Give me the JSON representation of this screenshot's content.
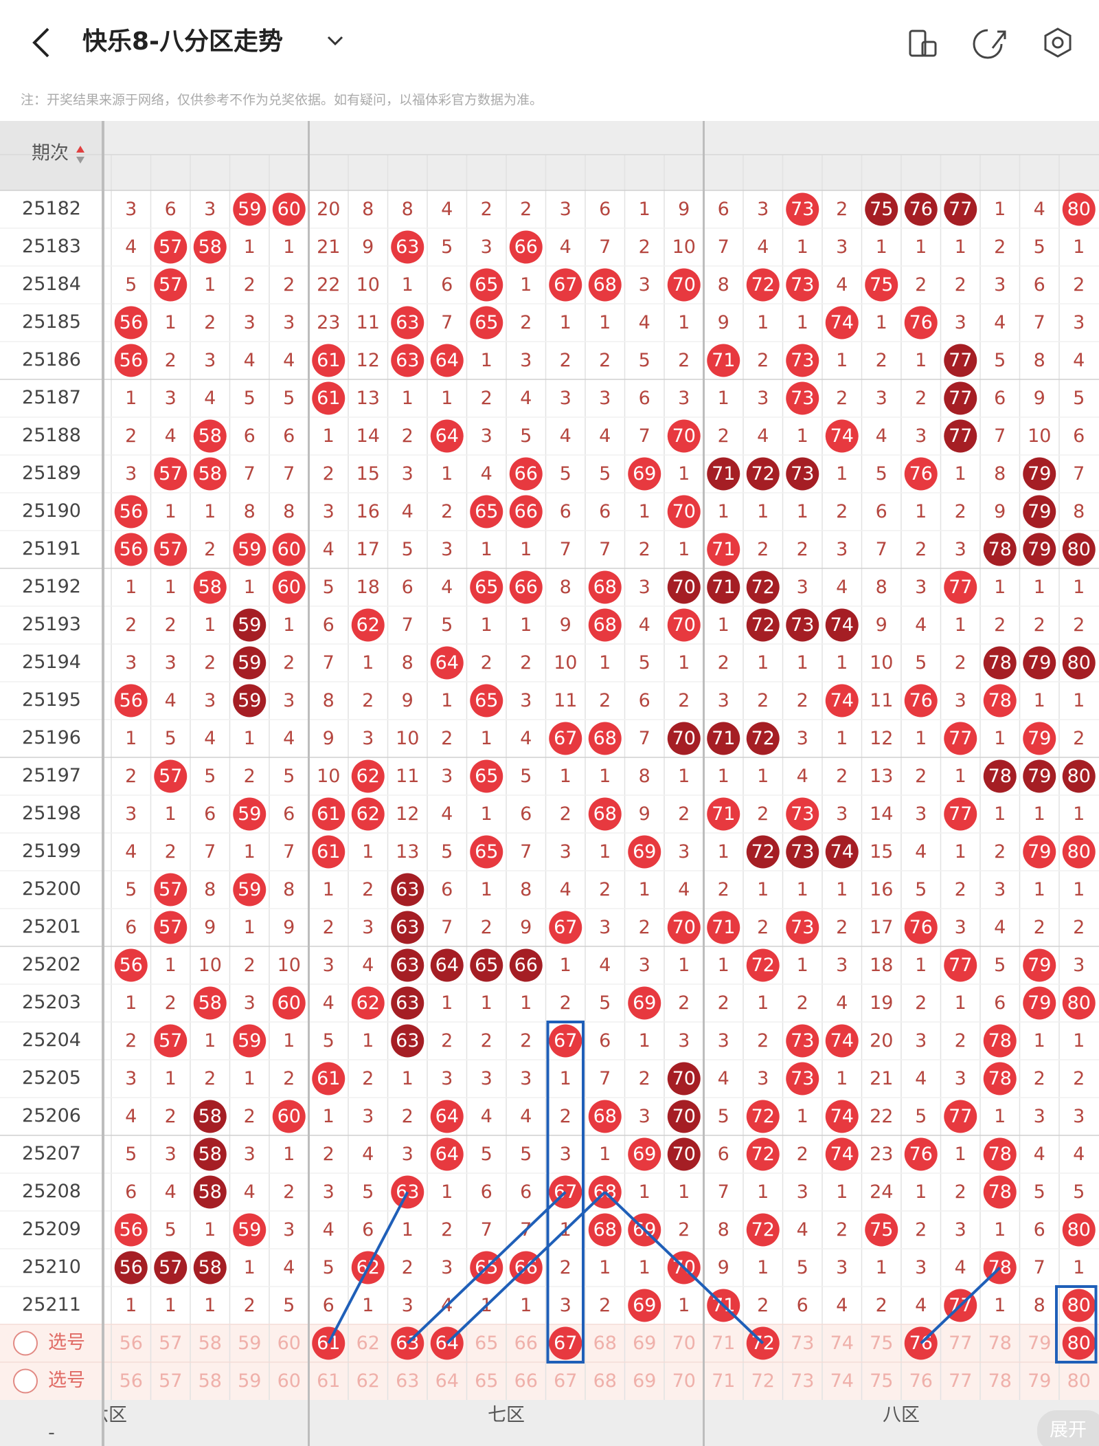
{
  "header": {
    "title": "快乐8-八分区走势",
    "note": "注：开奖结果来源于网络，仅供参考不作为兑奖依据。如有疑问，以福体彩官方数据为准。"
  },
  "table": {
    "period_header": "期次",
    "zones": [
      {
        "label": "六区"
      },
      {
        "label": "七区"
      },
      {
        "label": "八区"
      }
    ],
    "columns": [
      56,
      57,
      58,
      59,
      60,
      61,
      62,
      63,
      64,
      65,
      66,
      67,
      68,
      69,
      70,
      71,
      72,
      73,
      74,
      75,
      76,
      77,
      78,
      79,
      80
    ],
    "rows": [
      {
        "period": "25182",
        "cells": [
          3,
          6,
          3,
          59,
          60,
          20,
          8,
          8,
          4,
          2,
          2,
          3,
          6,
          1,
          9,
          6,
          3,
          73,
          2,
          75,
          76,
          77,
          1,
          4,
          80
        ],
        "dark": [
          75,
          76,
          77
        ]
      },
      {
        "period": "25183",
        "cells": [
          4,
          57,
          58,
          1,
          1,
          21,
          9,
          63,
          5,
          3,
          66,
          4,
          7,
          2,
          10,
          7,
          4,
          1,
          3,
          1,
          1,
          1,
          2,
          5,
          1
        ]
      },
      {
        "period": "25184",
        "cells": [
          5,
          57,
          1,
          2,
          2,
          22,
          10,
          1,
          6,
          65,
          1,
          67,
          68,
          3,
          70,
          8,
          72,
          73,
          4,
          75,
          2,
          2,
          3,
          6,
          2
        ]
      },
      {
        "period": "25185",
        "cells": [
          56,
          1,
          2,
          3,
          3,
          23,
          11,
          63,
          7,
          65,
          2,
          1,
          1,
          4,
          1,
          9,
          1,
          1,
          74,
          1,
          76,
          3,
          4,
          7,
          3
        ]
      },
      {
        "period": "25186",
        "cells": [
          56,
          2,
          3,
          4,
          4,
          61,
          12,
          63,
          64,
          1,
          3,
          2,
          2,
          5,
          2,
          71,
          2,
          73,
          1,
          2,
          1,
          77,
          5,
          8,
          4
        ],
        "dark": [
          77
        ]
      },
      {
        "period": "25187",
        "cells": [
          1,
          3,
          4,
          5,
          5,
          61,
          13,
          1,
          1,
          2,
          4,
          3,
          3,
          6,
          3,
          1,
          3,
          73,
          2,
          3,
          2,
          77,
          6,
          9,
          5
        ],
        "dark": [
          77
        ]
      },
      {
        "period": "25188",
        "cells": [
          2,
          4,
          58,
          6,
          6,
          1,
          14,
          2,
          64,
          3,
          5,
          4,
          4,
          7,
          70,
          2,
          4,
          1,
          74,
          4,
          3,
          77,
          7,
          10,
          6
        ],
        "dark": [
          77
        ]
      },
      {
        "period": "25189",
        "cells": [
          3,
          57,
          58,
          7,
          7,
          2,
          15,
          3,
          1,
          4,
          66,
          5,
          5,
          69,
          1,
          71,
          72,
          73,
          1,
          5,
          76,
          1,
          8,
          79,
          7
        ],
        "dark": [
          71,
          72,
          73,
          79
        ]
      },
      {
        "period": "25190",
        "cells": [
          56,
          1,
          1,
          8,
          8,
          3,
          16,
          4,
          2,
          65,
          66,
          6,
          6,
          1,
          70,
          1,
          1,
          1,
          2,
          6,
          1,
          2,
          9,
          79,
          8
        ],
        "dark": [
          79
        ]
      },
      {
        "period": "25191",
        "cells": [
          56,
          57,
          2,
          59,
          60,
          4,
          17,
          5,
          3,
          1,
          1,
          7,
          7,
          2,
          1,
          71,
          2,
          2,
          3,
          7,
          2,
          3,
          78,
          79,
          80
        ],
        "dark": [
          78,
          79,
          80
        ]
      },
      {
        "period": "25192",
        "cells": [
          1,
          1,
          58,
          1,
          60,
          5,
          18,
          6,
          4,
          65,
          66,
          8,
          68,
          3,
          70,
          71,
          72,
          3,
          4,
          8,
          3,
          77,
          1,
          1,
          1
        ],
        "dark": [
          70,
          71,
          72
        ]
      },
      {
        "period": "25193",
        "cells": [
          2,
          2,
          1,
          59,
          1,
          6,
          62,
          7,
          5,
          1,
          1,
          9,
          68,
          4,
          70,
          1,
          72,
          73,
          74,
          9,
          4,
          1,
          2,
          2,
          2
        ],
        "dark": [
          59,
          72,
          73,
          74
        ]
      },
      {
        "period": "25194",
        "cells": [
          3,
          3,
          2,
          59,
          2,
          7,
          1,
          8,
          64,
          2,
          2,
          10,
          1,
          5,
          1,
          2,
          1,
          1,
          1,
          10,
          5,
          2,
          78,
          79,
          80
        ],
        "dark": [
          59,
          78,
          79,
          80
        ]
      },
      {
        "period": "25195",
        "cells": [
          56,
          4,
          3,
          59,
          3,
          8,
          2,
          9,
          1,
          65,
          3,
          11,
          2,
          6,
          2,
          3,
          2,
          2,
          74,
          11,
          76,
          3,
          78,
          1,
          1
        ],
        "dark": [
          59
        ]
      },
      {
        "period": "25196",
        "cells": [
          1,
          5,
          4,
          1,
          4,
          9,
          3,
          10,
          2,
          1,
          4,
          67,
          68,
          7,
          70,
          71,
          72,
          3,
          1,
          12,
          1,
          77,
          1,
          79,
          2
        ],
        "dark": [
          70,
          71,
          72
        ]
      },
      {
        "period": "25197",
        "cells": [
          2,
          57,
          5,
          2,
          5,
          10,
          62,
          11,
          3,
          65,
          5,
          1,
          1,
          8,
          1,
          1,
          1,
          4,
          2,
          13,
          2,
          1,
          78,
          79,
          80
        ],
        "dark": [
          78,
          79,
          80
        ]
      },
      {
        "period": "25198",
        "cells": [
          3,
          1,
          6,
          59,
          6,
          61,
          62,
          12,
          4,
          1,
          6,
          2,
          68,
          9,
          2,
          71,
          2,
          73,
          3,
          14,
          3,
          77,
          1,
          1,
          1
        ]
      },
      {
        "period": "25199",
        "cells": [
          4,
          2,
          7,
          1,
          7,
          61,
          1,
          13,
          5,
          65,
          7,
          3,
          1,
          69,
          3,
          1,
          72,
          73,
          74,
          15,
          4,
          1,
          2,
          79,
          80
        ],
        "dark": [
          72,
          73,
          74
        ]
      },
      {
        "period": "25200",
        "cells": [
          5,
          57,
          8,
          59,
          8,
          1,
          2,
          63,
          6,
          1,
          8,
          4,
          2,
          1,
          4,
          2,
          1,
          1,
          1,
          16,
          5,
          2,
          3,
          1,
          1
        ],
        "dark": [
          63
        ]
      },
      {
        "period": "25201",
        "cells": [
          6,
          57,
          9,
          1,
          9,
          2,
          3,
          63,
          7,
          2,
          9,
          67,
          3,
          2,
          70,
          71,
          2,
          73,
          2,
          17,
          76,
          3,
          4,
          2,
          2
        ],
        "dark": [
          63
        ]
      },
      {
        "period": "25202",
        "cells": [
          56,
          1,
          10,
          2,
          10,
          3,
          4,
          63,
          64,
          65,
          66,
          1,
          4,
          3,
          1,
          1,
          72,
          1,
          3,
          18,
          1,
          77,
          5,
          79,
          3
        ],
        "dark": [
          63,
          64,
          65,
          66
        ]
      },
      {
        "period": "25203",
        "cells": [
          1,
          2,
          58,
          3,
          60,
          4,
          62,
          63,
          1,
          1,
          1,
          2,
          5,
          69,
          2,
          2,
          1,
          2,
          4,
          19,
          2,
          1,
          6,
          79,
          80
        ],
        "dark": [
          63
        ]
      },
      {
        "period": "25204",
        "cells": [
          2,
          57,
          1,
          59,
          1,
          5,
          1,
          63,
          2,
          2,
          2,
          67,
          6,
          1,
          3,
          3,
          2,
          73,
          74,
          20,
          3,
          2,
          78,
          1,
          1
        ],
        "dark": [
          63
        ]
      },
      {
        "period": "25205",
        "cells": [
          3,
          1,
          2,
          1,
          2,
          61,
          2,
          1,
          3,
          3,
          3,
          1,
          7,
          2,
          70,
          4,
          3,
          73,
          1,
          21,
          4,
          3,
          78,
          2,
          2
        ],
        "dark": [
          70
        ]
      },
      {
        "period": "25206",
        "cells": [
          4,
          2,
          58,
          2,
          60,
          1,
          3,
          2,
          64,
          4,
          4,
          2,
          68,
          3,
          70,
          5,
          72,
          1,
          74,
          22,
          5,
          77,
          1,
          3,
          3
        ],
        "dark": [
          58,
          70
        ]
      },
      {
        "period": "25207",
        "cells": [
          5,
          3,
          58,
          3,
          1,
          2,
          4,
          3,
          64,
          5,
          5,
          3,
          1,
          69,
          70,
          6,
          72,
          2,
          74,
          23,
          76,
          1,
          78,
          4,
          4
        ],
        "dark": [
          58,
          70
        ]
      },
      {
        "period": "25208",
        "cells": [
          6,
          4,
          58,
          4,
          2,
          3,
          5,
          63,
          1,
          6,
          6,
          67,
          68,
          1,
          1,
          7,
          1,
          3,
          1,
          24,
          1,
          2,
          78,
          5,
          5
        ],
        "dark": [
          58
        ]
      },
      {
        "period": "25209",
        "cells": [
          56,
          5,
          1,
          59,
          3,
          4,
          6,
          1,
          2,
          7,
          7,
          1,
          68,
          69,
          2,
          8,
          72,
          4,
          2,
          75,
          2,
          3,
          1,
          6,
          80
        ]
      },
      {
        "period": "25210",
        "cells": [
          56,
          57,
          58,
          1,
          4,
          5,
          62,
          2,
          3,
          65,
          66,
          2,
          1,
          1,
          70,
          9,
          1,
          5,
          3,
          1,
          3,
          4,
          78,
          7,
          1
        ],
        "dark": [
          56,
          57,
          58
        ]
      },
      {
        "period": "25211",
        "cells": [
          1,
          1,
          1,
          2,
          5,
          6,
          1,
          3,
          4,
          1,
          1,
          3,
          2,
          69,
          1,
          71,
          2,
          6,
          4,
          2,
          4,
          77,
          1,
          8,
          80
        ]
      }
    ],
    "selections": [
      {
        "label": "选号",
        "selected": [
          61,
          63,
          64,
          67,
          72,
          76,
          80
        ]
      },
      {
        "label": "选号"
      }
    ]
  },
  "footer": {
    "left": "-",
    "expand": "展开"
  }
}
